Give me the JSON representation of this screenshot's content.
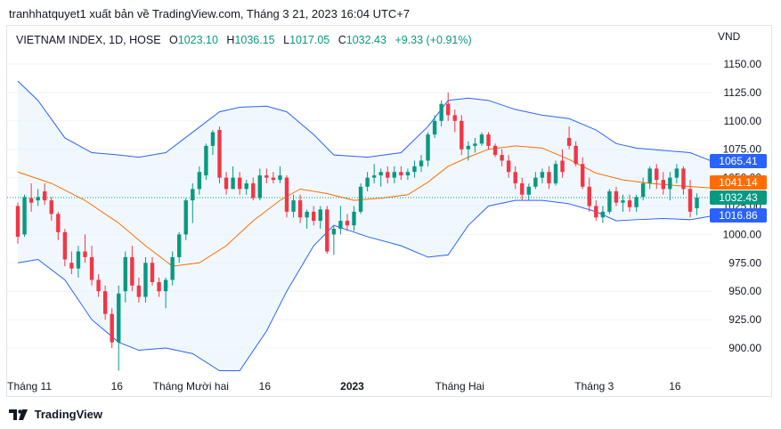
{
  "header": {
    "attribution": "tranhhatquyet1 xuất bản về TradingView.com, Tháng 3 21, 2023 16:04 UTC+7"
  },
  "legend": {
    "symbol": "VIETNAM INDEX, 1D, HOSE",
    "o_label": "O",
    "o_value": "1023.10",
    "h_label": "H",
    "h_value": "1036.15",
    "l_label": "L",
    "l_value": "1017.05",
    "c_label": "C",
    "c_value": "1032.43",
    "change": "+9.33 (+0.91%)"
  },
  "currency": "VND",
  "footer": {
    "brand": "TradingView"
  },
  "colors": {
    "up": "#089981",
    "down": "#f23645",
    "band": "#2962ff",
    "band_fill": "#e3f2fd",
    "basis": "#ff6d00",
    "grid": "#f0f3fa",
    "text": "#131722"
  },
  "chart_data": {
    "type": "candlestick",
    "ylim": [
      877,
      1165
    ],
    "yticks": [
      "1150.00",
      "1125.00",
      "1100.00",
      "1075.00",
      "1050.00",
      "1025.00",
      "1000.00",
      "975.00",
      "950.00",
      "925.00",
      "900.00"
    ],
    "xticks": [
      {
        "label": "Tháng 11",
        "index": 2,
        "bold": false
      },
      {
        "label": "16",
        "index": 15,
        "bold": false
      },
      {
        "label": "Tháng Mười hai",
        "index": 26,
        "bold": false
      },
      {
        "label": "16",
        "index": 37,
        "bold": false
      },
      {
        "label": "2023",
        "index": 50,
        "bold": true
      },
      {
        "label": "Tháng Hai",
        "index": 66,
        "bold": false
      },
      {
        "label": "Tháng 3",
        "index": 86,
        "bold": false
      },
      {
        "label": "16",
        "index": 98,
        "bold": false
      }
    ],
    "price_labels": [
      {
        "text": "1065.41",
        "value": 1065.41,
        "color": "#2962ff"
      },
      {
        "text": "1041.14",
        "value": 1041.14,
        "color": "#ff6d00"
      },
      {
        "text": "1032.43",
        "value": 1032.43,
        "color": "#089981"
      },
      {
        "text": "1016.86",
        "value": 1016.86,
        "color": "#2962ff"
      }
    ],
    "candles": [
      [
        1025,
        1028,
        992,
        998
      ],
      [
        1000,
        1035,
        998,
        1033
      ],
      [
        1032,
        1045,
        1020,
        1028
      ],
      [
        1030,
        1040,
        1025,
        1033
      ],
      [
        1038,
        1045,
        1026,
        1030
      ],
      [
        1030,
        1033,
        1012,
        1018
      ],
      [
        1018,
        1020,
        995,
        1002
      ],
      [
        1002,
        1005,
        972,
        978
      ],
      [
        975,
        985,
        965,
        970
      ],
      [
        970,
        990,
        962,
        985
      ],
      [
        985,
        1000,
        975,
        980
      ],
      [
        980,
        990,
        955,
        960
      ],
      [
        960,
        965,
        945,
        950
      ],
      [
        950,
        955,
        925,
        930
      ],
      [
        930,
        935,
        900,
        905
      ],
      [
        905,
        955,
        880,
        948
      ],
      [
        950,
        985,
        940,
        980
      ],
      [
        980,
        990,
        950,
        955
      ],
      [
        955,
        962,
        940,
        945
      ],
      [
        945,
        980,
        940,
        975
      ],
      [
        975,
        980,
        955,
        958
      ],
      [
        958,
        962,
        945,
        950
      ],
      [
        950,
        962,
        935,
        960
      ],
      [
        960,
        985,
        955,
        980
      ],
      [
        980,
        1002,
        975,
        1000
      ],
      [
        1000,
        1032,
        995,
        1030
      ],
      [
        1030,
        1045,
        1010,
        1040
      ],
      [
        1040,
        1060,
        1035,
        1055
      ],
      [
        1052,
        1080,
        1048,
        1078
      ],
      [
        1078,
        1092,
        1070,
        1090
      ],
      [
        1092,
        1095,
        1045,
        1050
      ],
      [
        1050,
        1055,
        1035,
        1040
      ],
      [
        1040,
        1060,
        1040,
        1050
      ],
      [
        1050,
        1055,
        1035,
        1040
      ],
      [
        1040,
        1048,
        1035,
        1045
      ],
      [
        1045,
        1050,
        1030,
        1032
      ],
      [
        1032,
        1058,
        1030,
        1052
      ],
      [
        1052,
        1058,
        1045,
        1050
      ],
      [
        1050,
        1055,
        1045,
        1048
      ],
      [
        1048,
        1060,
        1045,
        1052
      ],
      [
        1050,
        1052,
        1015,
        1020
      ],
      [
        1020,
        1035,
        1015,
        1030
      ],
      [
        1030,
        1035,
        1010,
        1015
      ],
      [
        1015,
        1022,
        1005,
        1020
      ],
      [
        1020,
        1025,
        1008,
        1012
      ],
      [
        1012,
        1025,
        1005,
        1022
      ],
      [
        1022,
        1025,
        983,
        985
      ],
      [
        1000,
        1008,
        982,
        1005
      ],
      [
        1005,
        1025,
        1000,
        1012
      ],
      [
        1012,
        1018,
        1003,
        1008
      ],
      [
        1008,
        1025,
        1003,
        1020
      ],
      [
        1020,
        1045,
        1018,
        1042
      ],
      [
        1042,
        1055,
        1038,
        1050
      ],
      [
        1050,
        1062,
        1045,
        1052
      ],
      [
        1052,
        1058,
        1042,
        1055
      ],
      [
        1055,
        1060,
        1045,
        1050
      ],
      [
        1050,
        1060,
        1045,
        1055
      ],
      [
        1055,
        1060,
        1048,
        1052
      ],
      [
        1052,
        1058,
        1048,
        1055
      ],
      [
        1055,
        1065,
        1050,
        1060
      ],
      [
        1060,
        1070,
        1055,
        1065
      ],
      [
        1065,
        1090,
        1060,
        1088
      ],
      [
        1088,
        1105,
        1085,
        1100
      ],
      [
        1100,
        1118,
        1095,
        1115
      ],
      [
        1115,
        1125,
        1100,
        1105
      ],
      [
        1105,
        1110,
        1090,
        1100
      ],
      [
        1100,
        1105,
        1070,
        1075
      ],
      [
        1075,
        1082,
        1065,
        1078
      ],
      [
        1078,
        1085,
        1072,
        1080
      ],
      [
        1080,
        1090,
        1078,
        1088
      ],
      [
        1088,
        1090,
        1075,
        1078
      ],
      [
        1078,
        1080,
        1068,
        1070
      ],
      [
        1070,
        1075,
        1060,
        1065
      ],
      [
        1065,
        1070,
        1050,
        1055
      ],
      [
        1055,
        1060,
        1040,
        1045
      ],
      [
        1045,
        1050,
        1030,
        1035
      ],
      [
        1035,
        1045,
        1030,
        1042
      ],
      [
        1042,
        1055,
        1040,
        1050
      ],
      [
        1050,
        1058,
        1045,
        1055
      ],
      [
        1055,
        1060,
        1040,
        1045
      ],
      [
        1045,
        1065,
        1043,
        1062
      ],
      [
        1065,
        1075,
        1050,
        1055
      ],
      [
        1085,
        1095,
        1075,
        1078
      ],
      [
        1078,
        1082,
        1060,
        1062
      ],
      [
        1062,
        1068,
        1040,
        1042
      ],
      [
        1042,
        1050,
        1020,
        1025
      ],
      [
        1025,
        1030,
        1012,
        1015
      ],
      [
        1015,
        1025,
        1010,
        1020
      ],
      [
        1020,
        1040,
        1018,
        1038
      ],
      [
        1038,
        1042,
        1025,
        1028
      ],
      [
        1028,
        1035,
        1020,
        1030
      ],
      [
        1030,
        1035,
        1020,
        1024
      ],
      [
        1024,
        1035,
        1020,
        1033
      ],
      [
        1033,
        1050,
        1030,
        1045
      ],
      [
        1045,
        1060,
        1040,
        1058
      ],
      [
        1058,
        1062,
        1040,
        1048
      ],
      [
        1048,
        1055,
        1035,
        1040
      ],
      [
        1040,
        1055,
        1030,
        1050
      ],
      [
        1050,
        1062,
        1045,
        1058
      ],
      [
        1058,
        1060,
        1035,
        1040
      ],
      [
        1040,
        1048,
        1015,
        1020
      ],
      [
        1023.1,
        1036.15,
        1017.05,
        1032.43
      ]
    ],
    "upper_band": [
      [
        0,
        1135
      ],
      [
        3,
        1118
      ],
      [
        7,
        1085
      ],
      [
        11,
        1072
      ],
      [
        15,
        1070
      ],
      [
        18,
        1068
      ],
      [
        22,
        1072
      ],
      [
        26,
        1090
      ],
      [
        30,
        1108
      ],
      [
        33,
        1112
      ],
      [
        37,
        1113
      ],
      [
        40,
        1108
      ],
      [
        44,
        1088
      ],
      [
        47,
        1070
      ],
      [
        52,
        1068
      ],
      [
        57,
        1072
      ],
      [
        61,
        1095
      ],
      [
        64,
        1118
      ],
      [
        67,
        1120
      ],
      [
        70,
        1118
      ],
      [
        74,
        1110
      ],
      [
        78,
        1105
      ],
      [
        82,
        1102
      ],
      [
        86,
        1092
      ],
      [
        89,
        1080
      ],
      [
        92,
        1076
      ],
      [
        96,
        1074
      ],
      [
        100,
        1072
      ],
      [
        103,
        1065
      ]
    ],
    "basis": [
      [
        0,
        1055
      ],
      [
        5,
        1045
      ],
      [
        10,
        1030
      ],
      [
        15,
        1010
      ],
      [
        19,
        990
      ],
      [
        23,
        972
      ],
      [
        27,
        975
      ],
      [
        31,
        990
      ],
      [
        35,
        1012
      ],
      [
        39,
        1030
      ],
      [
        42,
        1040
      ],
      [
        46,
        1036
      ],
      [
        50,
        1030
      ],
      [
        54,
        1032
      ],
      [
        58,
        1035
      ],
      [
        61,
        1046
      ],
      [
        64,
        1060
      ],
      [
        67,
        1068
      ],
      [
        70,
        1075
      ],
      [
        74,
        1078
      ],
      [
        78,
        1076
      ],
      [
        82,
        1066
      ],
      [
        86,
        1054
      ],
      [
        90,
        1048
      ],
      [
        94,
        1045
      ],
      [
        98,
        1043
      ],
      [
        103,
        1041
      ]
    ],
    "lower_band": [
      [
        0,
        975
      ],
      [
        3,
        978
      ],
      [
        7,
        960
      ],
      [
        11,
        925
      ],
      [
        15,
        905
      ],
      [
        18,
        898
      ],
      [
        22,
        900
      ],
      [
        26,
        895
      ],
      [
        30,
        880
      ],
      [
        33,
        880
      ],
      [
        37,
        915
      ],
      [
        40,
        950
      ],
      [
        44,
        990
      ],
      [
        47,
        1008
      ],
      [
        52,
        998
      ],
      [
        57,
        990
      ],
      [
        61,
        980
      ],
      [
        64,
        982
      ],
      [
        67,
        1008
      ],
      [
        70,
        1025
      ],
      [
        74,
        1030
      ],
      [
        78,
        1030
      ],
      [
        82,
        1027
      ],
      [
        86,
        1020
      ],
      [
        89,
        1012
      ],
      [
        92,
        1013
      ],
      [
        96,
        1014
      ],
      [
        100,
        1013
      ],
      [
        103,
        1016
      ]
    ]
  }
}
